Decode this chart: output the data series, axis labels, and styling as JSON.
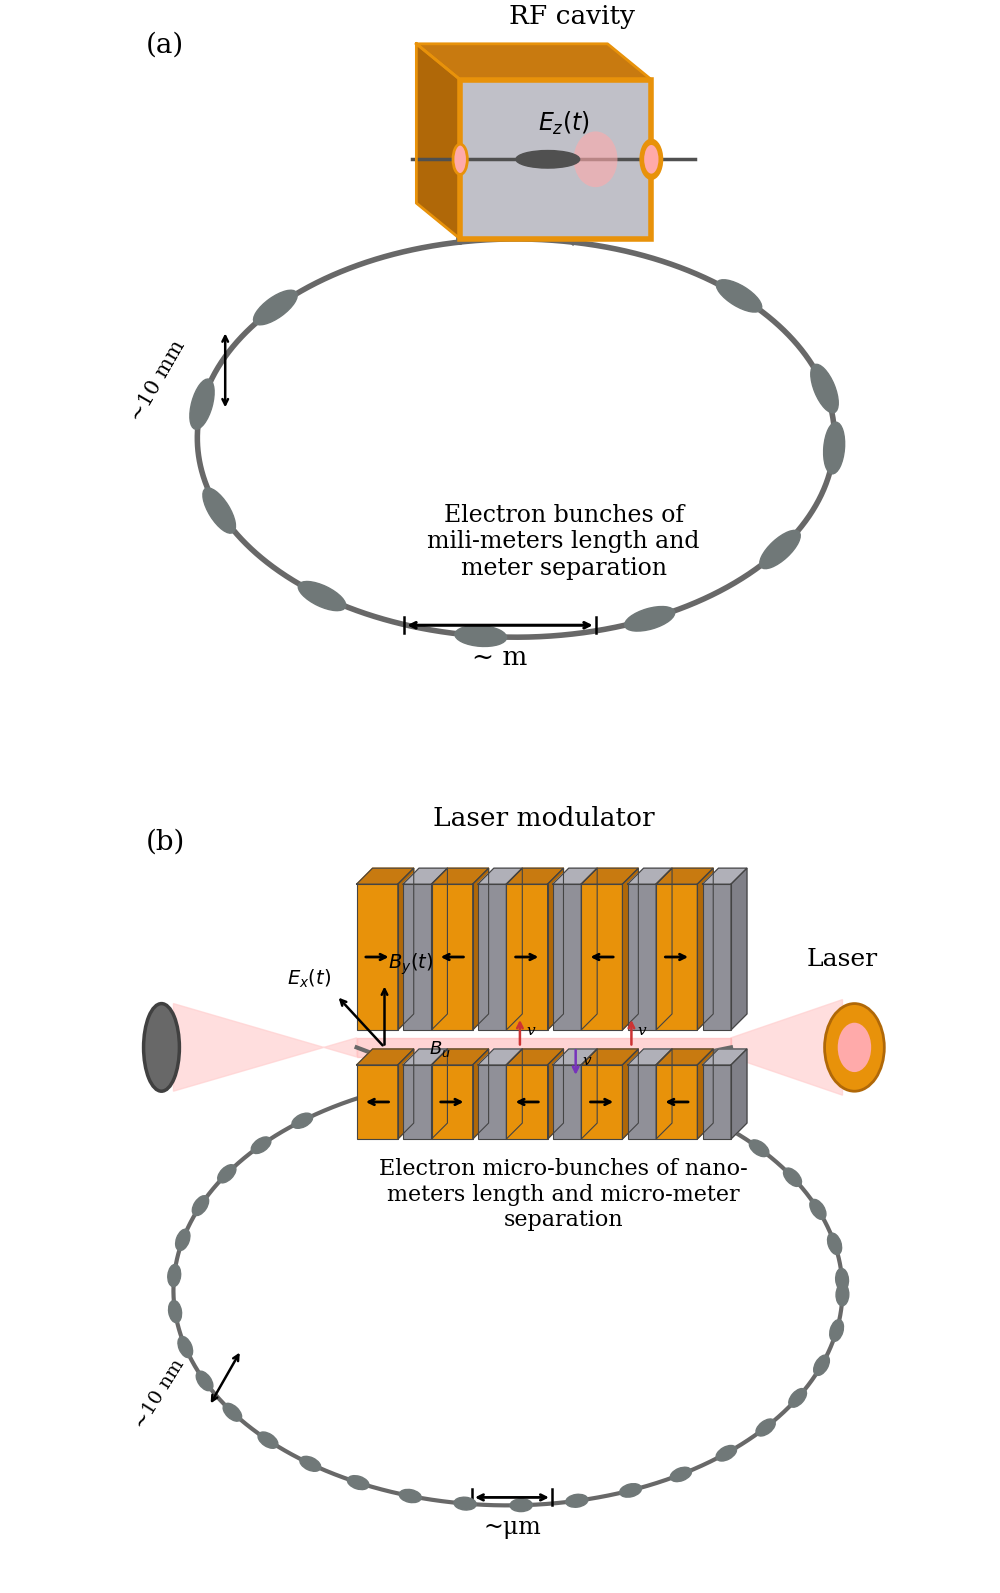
{
  "fig_width": 10.0,
  "fig_height": 15.93,
  "bg_color": "#ffffff",
  "panel_a_label": "(a)",
  "panel_b_label": "(b)",
  "rf_cavity_label": "RF cavity",
  "laser_modulator_label": "Laser modulator",
  "laser_label": "Laser",
  "ez_label": "$E_z(t)$",
  "ex_label": "$E_x(t)$",
  "by_label": "$B_y(t)$",
  "bu_label": "$B_u$",
  "v_label": "v",
  "electron_bunch_line1": "Electron bunches of",
  "electron_bunch_line2": "mili-meters length and",
  "electron_bunch_line3": "meter separation",
  "electron_micro_line1": "Electron micro-bunches of nano-",
  "electron_micro_line2": "meters length and micro-meter",
  "electron_micro_line3": "separation",
  "ten_mm_label": "~10 mm",
  "ten_nm_label": "~10 nm",
  "sep_m_label": "~ m",
  "sep_um_label": "~μm",
  "orange_color": "#E8920A",
  "dark_orange": "#B06808",
  "mid_orange": "#C87A10",
  "gray_color": "#808080",
  "dark_gray": "#505050",
  "light_gray": "#C0C0C8",
  "mid_gray": "#909098",
  "pink_color": "#FFAAAA",
  "pink_light": "#FFD0D0",
  "red_color": "#DD3333",
  "purple_color": "#7733BB",
  "bunch_color": "#707878",
  "ring_color": "#686868",
  "ring_lw_a": 4.0,
  "ring_lw_b": 3.0,
  "mirror_color": "#686868",
  "mirror_edge": "#404040"
}
